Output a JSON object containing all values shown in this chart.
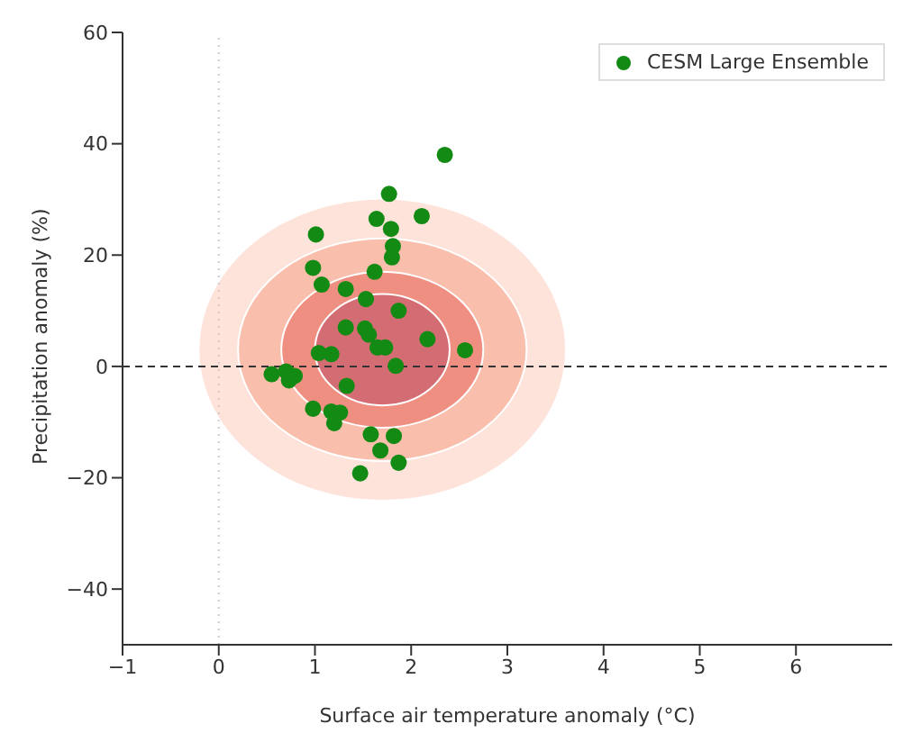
{
  "chart_data": {
    "type": "scatter",
    "xlabel": "Surface air temperature anomaly (°C)",
    "ylabel": "Precipitation anomaly (%)",
    "xlim": [
      -1,
      7
    ],
    "xticks": [
      -1,
      0,
      1,
      2,
      3,
      4,
      5,
      6
    ],
    "ylim": [
      -50,
      60
    ],
    "yticks": [
      -40,
      -20,
      0,
      20,
      40,
      60
    ],
    "legend": "top right",
    "marker": "circle",
    "grid": false,
    "ref_lines": [
      {
        "axis": "y",
        "value": 0,
        "color": "#333333",
        "line_style": "dashed"
      },
      {
        "axis": "x",
        "value": 0,
        "color": "#cccccc",
        "line_style": "dotted"
      }
    ],
    "series": [
      {
        "name": "CESM Large Ensemble",
        "color": "#138a13",
        "x": [
          2.35,
          1.77,
          1.64,
          2.11,
          1.79,
          1.81,
          1.8,
          1.01,
          0.98,
          1.07,
          1.32,
          1.62,
          1.53,
          1.87,
          1.32,
          1.52,
          1.56,
          1.65,
          1.73,
          2.17,
          2.56,
          1.04,
          1.17,
          1.84,
          0.55,
          0.7,
          0.79,
          0.73,
          1.33,
          0.98,
          1.17,
          1.26,
          1.2,
          1.58,
          1.82,
          1.68,
          1.87,
          1.47
        ],
        "values": [
          38,
          31,
          26.5,
          27,
          24.7,
          21.6,
          19.6,
          23.7,
          17.7,
          14.7,
          13.9,
          17,
          12.1,
          10,
          7,
          6.8,
          5.7,
          3.4,
          3.4,
          4.9,
          2.9,
          2.4,
          2.2,
          0.1,
          -1.4,
          -0.9,
          -1.7,
          -2.5,
          -3.5,
          -7.6,
          -8.1,
          -8.3,
          -10.2,
          -12.2,
          -12.5,
          -15.1,
          -17.3,
          -19.2
        ]
      }
    ]
  }
}
